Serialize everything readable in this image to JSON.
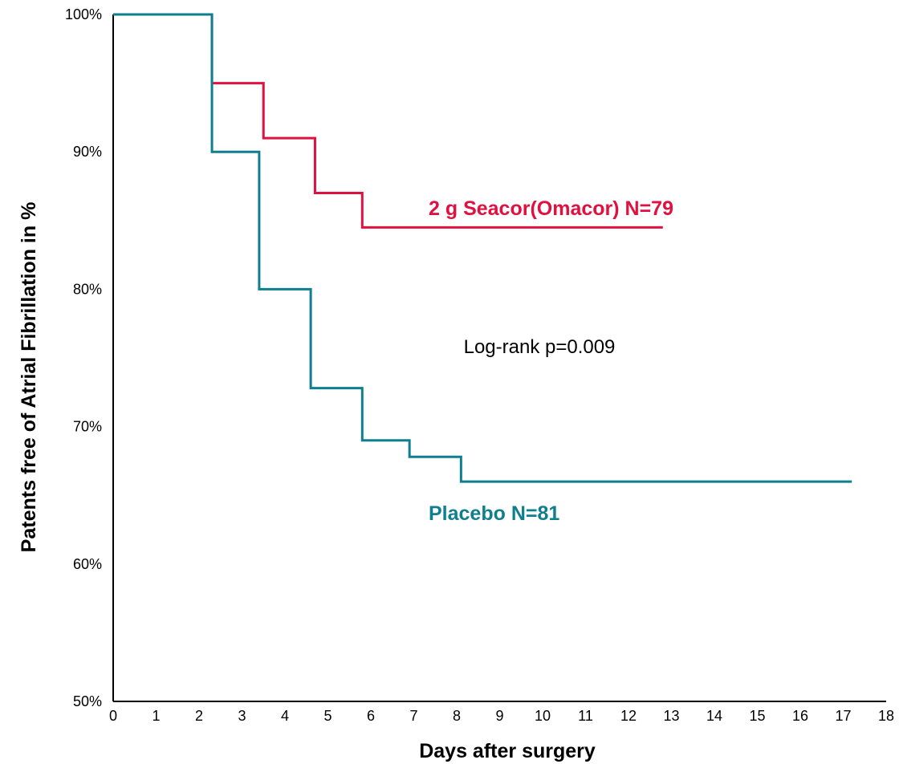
{
  "chart_data": {
    "type": "line",
    "step": true,
    "xlabel": "Days after surgery",
    "ylabel": "Patents free of Atrial Fibrillation in %",
    "xlim": [
      0,
      18
    ],
    "ylim": [
      50,
      100
    ],
    "x_ticks": [
      0,
      1,
      2,
      3,
      4,
      5,
      6,
      7,
      8,
      9,
      10,
      11,
      12,
      13,
      14,
      15,
      16,
      17,
      18
    ],
    "x_tick_labels": [
      "0",
      "1",
      "2",
      "3",
      "4",
      "5",
      "6",
      "7",
      "8",
      "9",
      "10",
      "11",
      "12",
      "13",
      "14",
      "15",
      "16",
      "17",
      "18"
    ],
    "y_ticks": [
      50,
      60,
      70,
      80,
      90,
      100
    ],
    "y_tick_labels": [
      "50%",
      "60%",
      "70%",
      "80%",
      "90%",
      "100%"
    ],
    "grid": false,
    "legend": "none",
    "series": [
      {
        "name": "2 g Seacor(Omacor) N=79",
        "color": "#e0103f",
        "x": [
          0,
          2.3,
          3.5,
          4.7,
          5.8,
          12.8
        ],
        "y": [
          100,
          95,
          91,
          87,
          84.5,
          84.5
        ]
      },
      {
        "name": "Placebo N=81",
        "color": "#0f7f8f",
        "x": [
          0,
          2.3,
          3.4,
          4.6,
          5.8,
          6.9,
          8.1,
          17.2
        ],
        "y": [
          100,
          90,
          80,
          72.8,
          69,
          67.8,
          66,
          66
        ]
      }
    ],
    "annotations": [
      {
        "text": "Log-rank p=0.009",
        "x": 11.5,
        "y": 75
      }
    ]
  }
}
